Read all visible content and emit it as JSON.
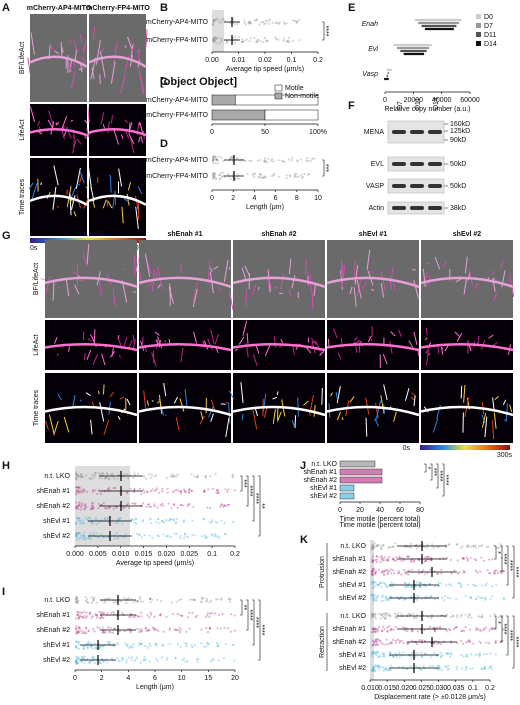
{
  "panels": {
    "A": {
      "letter": "A",
      "columns": [
        "mCherry-AP4-MITO",
        "mCherry-FP4-MITO"
      ],
      "rows": [
        "BF/LifeAct",
        "LifeAct",
        "Time traces"
      ],
      "colorbar": [
        "0s",
        "300s"
      ]
    },
    "B": {
      "letter": "B",
      "categories": [
        "mCherry-AP4-MITO",
        "mCherry-FP4-MITO"
      ],
      "xticks": [
        "0.00",
        "0.01",
        "0.02",
        "0.1",
        "0.2"
      ],
      "xlabel": "Average tip speed (μm/s)",
      "significance": [
        "****"
      ]
    },
    "C": {
      "letter": "C",
      "categories": [
        "mCherry-AP4-MITO",
        "mCherry-FP4-MITO"
      ],
      "xticks": [
        "0",
        "50",
        "100%"
      ],
      "legend": [
        "Motile",
        "Non-motile"
      ]
    },
    "D": {
      "letter": "D",
      "categories": [
        "mCherry-AP4-MITO",
        "mCherry-FP4-MITO"
      ],
      "xticks": [
        "0",
        "2",
        "4",
        "6",
        "8",
        "10"
      ],
      "xlabel": "Length (μm)",
      "significance": [
        "***"
      ]
    },
    "E": {
      "letter": "E",
      "genes": [
        "Enah",
        "Evl",
        "Vasp"
      ],
      "xticks": [
        "0",
        "20000",
        "40000",
        "60000"
      ],
      "xlabel": "Relative copy number (a.u.)",
      "legend": [
        "D0",
        "D7",
        "D11",
        "D14"
      ]
    },
    "F": {
      "letter": "F",
      "columns": [
        "D7",
        "D11",
        "D14"
      ],
      "proteins": [
        "MENA",
        "EVL",
        "VASP",
        "Actin"
      ],
      "sizes": [
        "160kD",
        "125kD",
        "90kD",
        "50kD",
        "50kD",
        "38kD"
      ]
    },
    "G": {
      "letter": "G",
      "columns": [
        "n.t. LKO",
        "shEnah #1",
        "shEnah #2",
        "shEvl #1",
        "shEvl #2"
      ],
      "rows": [
        "BF/LifeAct",
        "LifeAct",
        "Time traces"
      ],
      "colorbar": [
        "0s",
        "300s"
      ]
    },
    "H": {
      "letter": "H",
      "categories": [
        "n.t. LKO",
        "shEnah #1",
        "shEnah #2",
        "shEvl #1",
        "shEvl #2"
      ],
      "xticks": [
        "0.000",
        "0.005",
        "0.010",
        "0.015",
        "0.020",
        "0.025",
        "0.1",
        "0.2"
      ],
      "xlabel": "Average tip speed (μm/s)",
      "significance": [
        "***",
        "****",
        "****",
        "**"
      ]
    },
    "I": {
      "letter": "I",
      "categories": [
        "n.t. LKO",
        "shEnah #1",
        "shEnah #2",
        "shEvl #1",
        "shEvl #2"
      ],
      "xticks": [
        "0",
        "2",
        "4",
        "6",
        "10",
        "15",
        "20"
      ],
      "xlabel": "Length (μm)",
      "significance": [
        "**",
        "****",
        "****",
        "****"
      ]
    },
    "J": {
      "letter": "J",
      "categories": [
        "n.t. LKO",
        "shEnah #1",
        "shEnah #2",
        "shEvl #1",
        "shEvl #2"
      ],
      "xticks": [
        "0",
        "20",
        "40",
        "60",
        "80"
      ],
      "xlabel": "Time motile (percent total)",
      "significance": [
        "*",
        "***",
        "****",
        "****"
      ]
    },
    "K": {
      "letter": "K",
      "groups": [
        "Protrusion",
        "Retraction"
      ],
      "categories": [
        "n.t. LKO",
        "shEnah #1",
        "shEnah #2",
        "shEvl #1",
        "shEvl #2"
      ],
      "xticks": [
        "0.010",
        "0.015",
        "0.020",
        "0.025",
        "0.030",
        "0.035",
        "0.1",
        "0.2"
      ],
      "xlabel": "Displacement rate (> ±0.0128 μm/s)",
      "significance": [
        "*",
        "****",
        "****",
        "****"
      ]
    }
  }
}
